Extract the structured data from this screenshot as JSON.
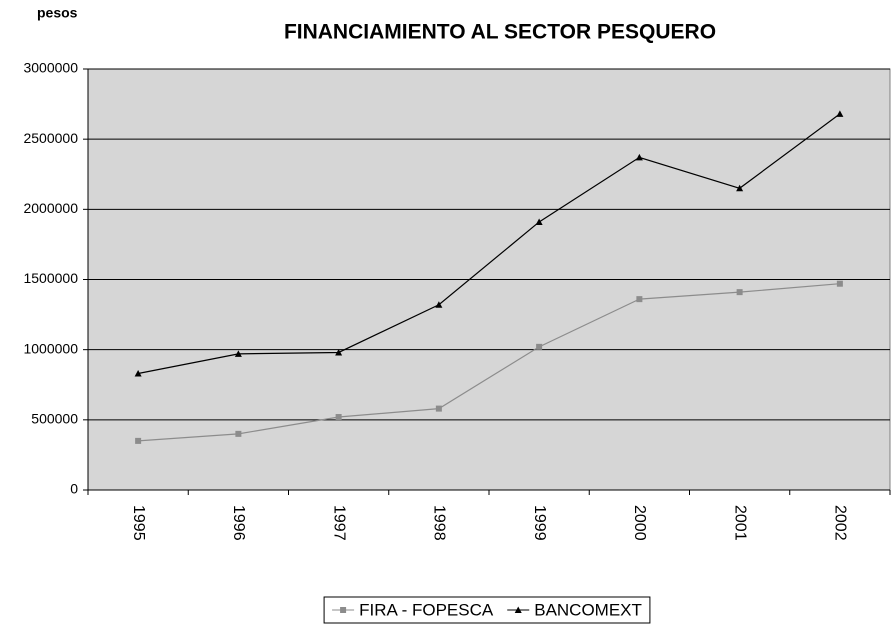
{
  "chart_data": {
    "type": "line",
    "title": "FINANCIAMIENTO AL SECTOR PESQUERO",
    "y_label": "pesos",
    "categories": [
      "1995",
      "1996",
      "1997",
      "1998",
      "1999",
      "2000",
      "2001",
      "2002"
    ],
    "series": [
      {
        "name": "FIRA - FOPESCA",
        "color": "#8c8c8c",
        "marker": "square",
        "values": [
          350000,
          400000,
          520000,
          580000,
          1020000,
          1360000,
          1410000,
          1470000
        ]
      },
      {
        "name": "BANCOMEXT",
        "color": "#000000",
        "marker": "triangle",
        "values": [
          830000,
          970000,
          980000,
          1320000,
          1910000,
          2370000,
          2150000,
          2680000
        ]
      }
    ],
    "ylim": [
      0,
      3000000
    ],
    "yticks": [
      0,
      500000,
      1000000,
      1500000,
      2000000,
      2500000,
      3000000
    ],
    "grid": true,
    "legend": "bottom"
  }
}
